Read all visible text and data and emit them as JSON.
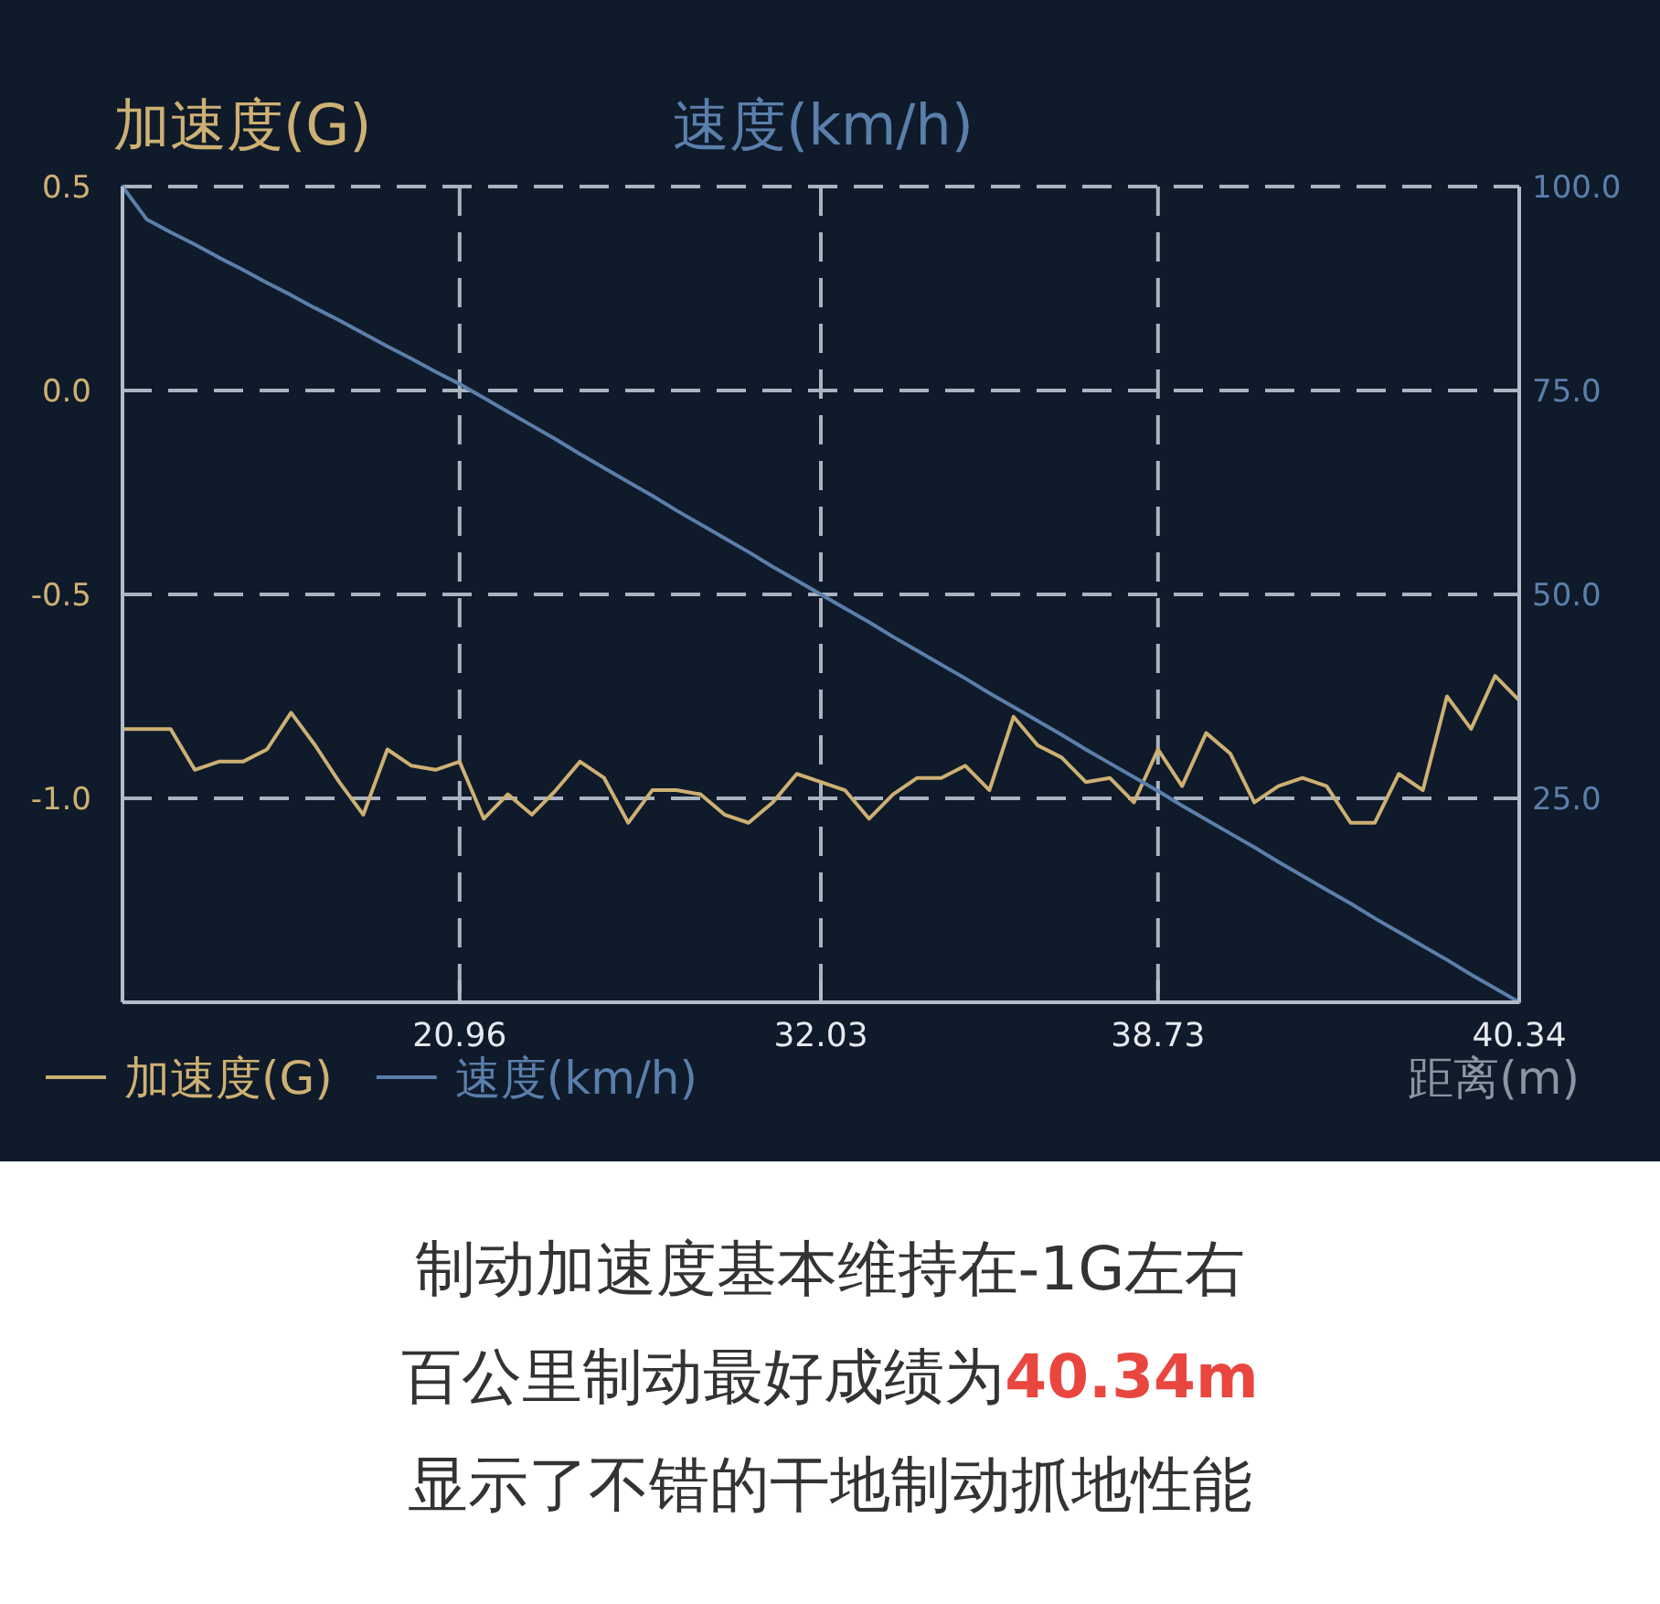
{
  "chart_data": {
    "type": "line",
    "ylabel": "加速度(G)",
    "y2label": "速度(km/h)",
    "xlabel": "距离(m)",
    "categories": [
      null,
      null,
      null,
      null,
      null,
      null,
      null,
      null,
      null,
      null,
      null,
      null,
      null,
      null,
      "20.96",
      null,
      null,
      null,
      null,
      null,
      null,
      null,
      null,
      null,
      null,
      null,
      null,
      null,
      null,
      "32.03",
      null,
      null,
      null,
      null,
      null,
      null,
      null,
      null,
      null,
      null,
      null,
      null,
      null,
      "38.73",
      null,
      null,
      null,
      null,
      null,
      null,
      null,
      null,
      null,
      null,
      null,
      null,
      null,
      null,
      "40.34"
    ],
    "ylim": [
      -1.5,
      0.5
    ],
    "yticks": [
      0.5,
      {
        "value": 0,
        "label": "0.0"
      },
      -0.5,
      {
        "value": -1,
        "label": "-1.0"
      }
    ],
    "y2lim": [
      0,
      100
    ],
    "y2ticks": [
      {
        "value": 100,
        "label": "100.0"
      },
      {
        "value": 75,
        "label": "75.0"
      },
      {
        "value": 50,
        "label": "50.0"
      },
      {
        "value": 25,
        "label": "25.0"
      }
    ],
    "grid": true,
    "legend": "bottom left",
    "series": [
      {
        "name": "加速度(G)",
        "color": "#cdb073",
        "values": [
          -0.83,
          -0.83,
          -0.83,
          -0.93,
          -0.91,
          -0.91,
          -0.88,
          -0.79,
          -0.87,
          -0.96,
          -1.04,
          -0.88,
          -0.92,
          -0.93,
          -0.91,
          -1.05,
          -0.99,
          -1.04,
          -0.98,
          -0.91,
          -0.95,
          -1.06,
          -0.98,
          -0.98,
          -0.99,
          -1.04,
          -1.06,
          -1.01,
          -0.94,
          -0.96,
          -0.98,
          -1.05,
          -0.99,
          -0.95,
          -0.95,
          -0.92,
          -0.98,
          -0.8,
          -0.87,
          -0.9,
          -0.96,
          -0.95,
          -1.01,
          -0.88,
          -0.97,
          -0.84,
          -0.89,
          -1.01,
          -0.97,
          -0.95,
          -0.97,
          -1.06,
          -1.06,
          -0.94,
          -0.98,
          -0.75,
          -0.83,
          -0.7,
          -0.76
        ]
      },
      {
        "name": "速度(km/h)",
        "color": "#5b7fab",
        "axis": "y2",
        "values": [
          100,
          96.0,
          94.4,
          92.9,
          91.3,
          89.8,
          88.2,
          86.7,
          85.1,
          83.6,
          82.0,
          80.4,
          78.9,
          77.3,
          75.8,
          74.1,
          72.4,
          70.7,
          69.0,
          67.2,
          65.5,
          63.8,
          62.1,
          60.3,
          58.6,
          56.9,
          55.2,
          53.4,
          51.7,
          50.0,
          48.3,
          46.6,
          44.8,
          43.1,
          41.4,
          39.7,
          37.9,
          36.2,
          34.5,
          32.8,
          31.0,
          29.3,
          27.6,
          25.9,
          24.1,
          22.4,
          20.7,
          19.0,
          17.2,
          15.5,
          13.8,
          12.1,
          10.3,
          8.6,
          6.9,
          5.2,
          3.4,
          1.7,
          0
        ]
      }
    ],
    "annotations": [
      "制动加速度基本维持在-1G左右",
      "百公里制动最好成绩为**40.34m**",
      "显示了不错的干地制动抓地性能"
    ]
  }
}
